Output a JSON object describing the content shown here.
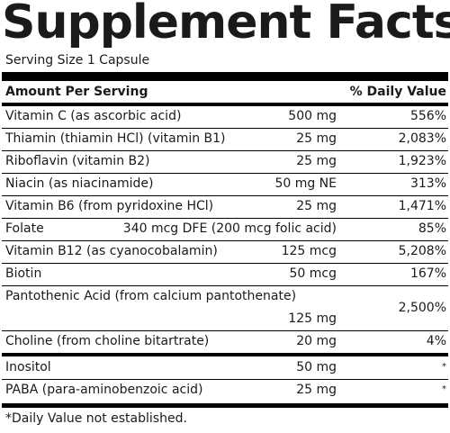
{
  "panel": {
    "title": "Supplement Facts",
    "serving_size": "Serving Size 1 Capsule",
    "header_amount": "Amount Per Serving",
    "header_dv": "% Daily Value",
    "footnote": "*Daily Value not established."
  },
  "rows": [
    {
      "name": "Vitamin C (as ascorbic acid)",
      "amount": "500 mg",
      "dv": "556%"
    },
    {
      "name": "Thiamin (thiamin HCl) (vitamin B1)",
      "amount": "25 mg",
      "dv": "2,083%"
    },
    {
      "name": "Riboflavin (vitamin B2)",
      "amount": "25 mg",
      "dv": "1,923%"
    },
    {
      "name": "Niacin (as niacinamide)",
      "amount": "50 mg NE",
      "dv": "313%"
    },
    {
      "name": "Vitamin B6 (from pyridoxine HCl)",
      "amount": "25 mg",
      "dv": "1,471%"
    },
    {
      "name": "Folate",
      "amount": "340 mcg DFE (200 mcg folic acid)",
      "dv": "85%"
    },
    {
      "name": "Vitamin B12 (as cyanocobalamin)",
      "amount": "125 mcg",
      "dv": "5,208%"
    },
    {
      "name": "Biotin",
      "amount": "50 mcg",
      "dv": "167%"
    },
    {
      "name": "Pantothenic Acid (from calcium pantothenate)",
      "amount": "125 mg",
      "dv": "2,500%"
    },
    {
      "name": "Choline (from choline bitartrate)",
      "amount": "20 mg",
      "dv": "4%"
    },
    {
      "name": "Inositol",
      "amount": "50 mg",
      "dv": "*"
    },
    {
      "name": "PABA (para-aminobenzoic acid)",
      "amount": "25 mg",
      "dv": "*"
    }
  ]
}
